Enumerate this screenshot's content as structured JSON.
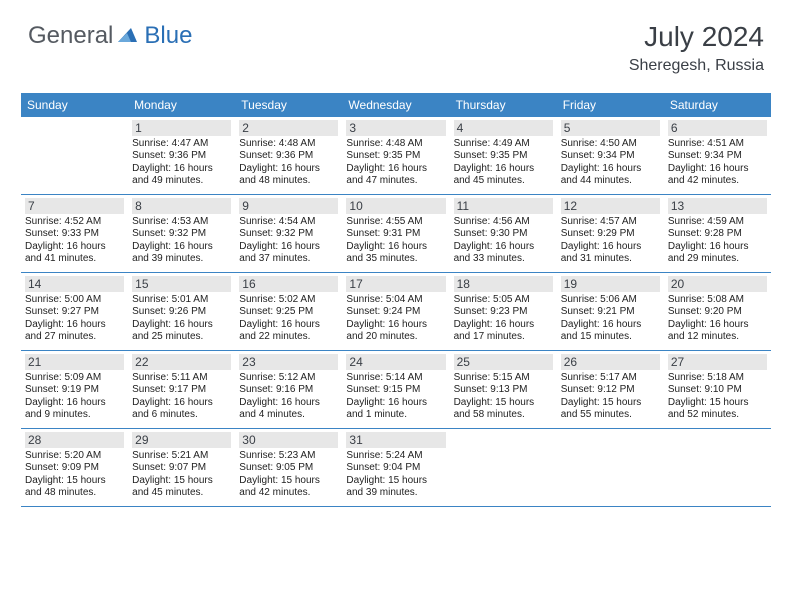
{
  "brand": {
    "part1": "General",
    "part2": "Blue"
  },
  "title": "July 2024",
  "location": "Sheregesh, Russia",
  "colors": {
    "header_bg": "#3b84c4",
    "header_text": "#ffffff",
    "daynum_bg": "#e7e7e7",
    "border": "#3b84c4",
    "brand_gray": "#555a61",
    "brand_blue": "#2a6fb5"
  },
  "day_names": [
    "Sunday",
    "Monday",
    "Tuesday",
    "Wednesday",
    "Thursday",
    "Friday",
    "Saturday"
  ],
  "first_weekday_index": 1,
  "days": [
    {
      "n": 1,
      "sr": "4:47 AM",
      "ss": "9:36 PM",
      "dl": "16 hours and 49 minutes."
    },
    {
      "n": 2,
      "sr": "4:48 AM",
      "ss": "9:36 PM",
      "dl": "16 hours and 48 minutes."
    },
    {
      "n": 3,
      "sr": "4:48 AM",
      "ss": "9:35 PM",
      "dl": "16 hours and 47 minutes."
    },
    {
      "n": 4,
      "sr": "4:49 AM",
      "ss": "9:35 PM",
      "dl": "16 hours and 45 minutes."
    },
    {
      "n": 5,
      "sr": "4:50 AM",
      "ss": "9:34 PM",
      "dl": "16 hours and 44 minutes."
    },
    {
      "n": 6,
      "sr": "4:51 AM",
      "ss": "9:34 PM",
      "dl": "16 hours and 42 minutes."
    },
    {
      "n": 7,
      "sr": "4:52 AM",
      "ss": "9:33 PM",
      "dl": "16 hours and 41 minutes."
    },
    {
      "n": 8,
      "sr": "4:53 AM",
      "ss": "9:32 PM",
      "dl": "16 hours and 39 minutes."
    },
    {
      "n": 9,
      "sr": "4:54 AM",
      "ss": "9:32 PM",
      "dl": "16 hours and 37 minutes."
    },
    {
      "n": 10,
      "sr": "4:55 AM",
      "ss": "9:31 PM",
      "dl": "16 hours and 35 minutes."
    },
    {
      "n": 11,
      "sr": "4:56 AM",
      "ss": "9:30 PM",
      "dl": "16 hours and 33 minutes."
    },
    {
      "n": 12,
      "sr": "4:57 AM",
      "ss": "9:29 PM",
      "dl": "16 hours and 31 minutes."
    },
    {
      "n": 13,
      "sr": "4:59 AM",
      "ss": "9:28 PM",
      "dl": "16 hours and 29 minutes."
    },
    {
      "n": 14,
      "sr": "5:00 AM",
      "ss": "9:27 PM",
      "dl": "16 hours and 27 minutes."
    },
    {
      "n": 15,
      "sr": "5:01 AM",
      "ss": "9:26 PM",
      "dl": "16 hours and 25 minutes."
    },
    {
      "n": 16,
      "sr": "5:02 AM",
      "ss": "9:25 PM",
      "dl": "16 hours and 22 minutes."
    },
    {
      "n": 17,
      "sr": "5:04 AM",
      "ss": "9:24 PM",
      "dl": "16 hours and 20 minutes."
    },
    {
      "n": 18,
      "sr": "5:05 AM",
      "ss": "9:23 PM",
      "dl": "16 hours and 17 minutes."
    },
    {
      "n": 19,
      "sr": "5:06 AM",
      "ss": "9:21 PM",
      "dl": "16 hours and 15 minutes."
    },
    {
      "n": 20,
      "sr": "5:08 AM",
      "ss": "9:20 PM",
      "dl": "16 hours and 12 minutes."
    },
    {
      "n": 21,
      "sr": "5:09 AM",
      "ss": "9:19 PM",
      "dl": "16 hours and 9 minutes."
    },
    {
      "n": 22,
      "sr": "5:11 AM",
      "ss": "9:17 PM",
      "dl": "16 hours and 6 minutes."
    },
    {
      "n": 23,
      "sr": "5:12 AM",
      "ss": "9:16 PM",
      "dl": "16 hours and 4 minutes."
    },
    {
      "n": 24,
      "sr": "5:14 AM",
      "ss": "9:15 PM",
      "dl": "16 hours and 1 minute."
    },
    {
      "n": 25,
      "sr": "5:15 AM",
      "ss": "9:13 PM",
      "dl": "15 hours and 58 minutes."
    },
    {
      "n": 26,
      "sr": "5:17 AM",
      "ss": "9:12 PM",
      "dl": "15 hours and 55 minutes."
    },
    {
      "n": 27,
      "sr": "5:18 AM",
      "ss": "9:10 PM",
      "dl": "15 hours and 52 minutes."
    },
    {
      "n": 28,
      "sr": "5:20 AM",
      "ss": "9:09 PM",
      "dl": "15 hours and 48 minutes."
    },
    {
      "n": 29,
      "sr": "5:21 AM",
      "ss": "9:07 PM",
      "dl": "15 hours and 45 minutes."
    },
    {
      "n": 30,
      "sr": "5:23 AM",
      "ss": "9:05 PM",
      "dl": "15 hours and 42 minutes."
    },
    {
      "n": 31,
      "sr": "5:24 AM",
      "ss": "9:04 PM",
      "dl": "15 hours and 39 minutes."
    }
  ],
  "labels": {
    "sunrise": "Sunrise:",
    "sunset": "Sunset:",
    "daylight": "Daylight:"
  }
}
